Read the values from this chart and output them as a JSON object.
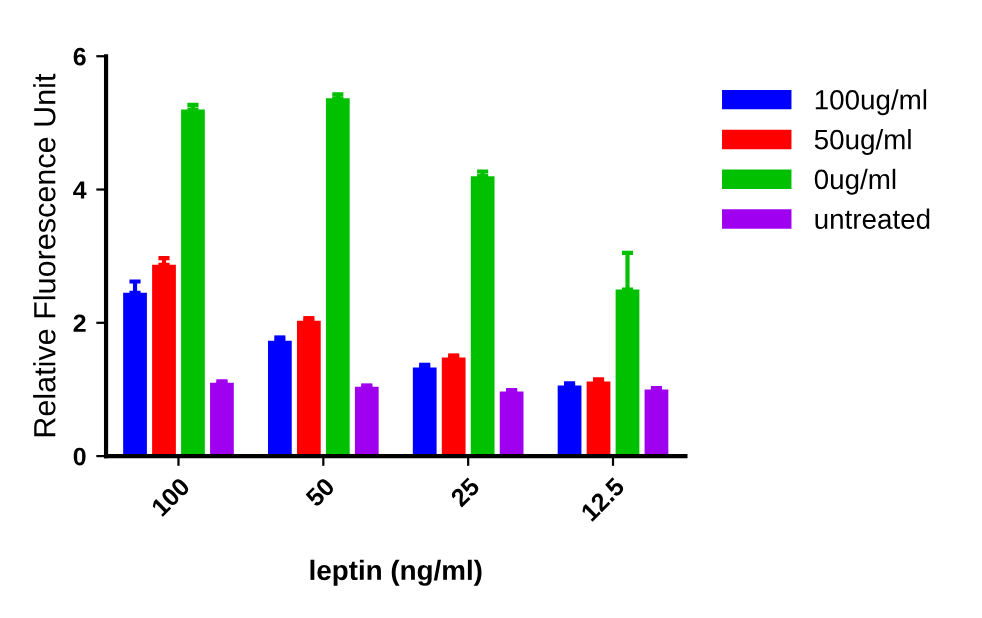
{
  "chart_data": {
    "type": "bar",
    "xlabel": "leptin (ng/ml)",
    "ylabel": "Relative Fluorescence Unit",
    "categories": [
      "100",
      "50",
      "25",
      "12.5"
    ],
    "series": [
      {
        "name": "100ug/ml",
        "color": "#0000ff",
        "values": [
          2.45,
          1.73,
          1.33,
          1.06
        ],
        "errors": [
          0.17,
          0.05,
          0.04,
          0.03
        ]
      },
      {
        "name": "50ug/ml",
        "color": "#ff0000",
        "values": [
          2.87,
          2.03,
          1.48,
          1.12
        ],
        "errors": [
          0.1,
          0.04,
          0.03,
          0.03
        ]
      },
      {
        "name": "0ug/ml",
        "color": "#00c000",
        "values": [
          5.2,
          5.37,
          4.2,
          2.5
        ],
        "errors": [
          0.07,
          0.06,
          0.07,
          0.55
        ]
      },
      {
        "name": "untreated",
        "color": "#a000f0",
        "values": [
          1.1,
          1.04,
          0.97,
          1.0
        ],
        "errors": [
          0.02,
          0.02,
          0.02,
          0.02
        ]
      }
    ],
    "ylim": [
      0,
      6
    ],
    "yticks": [
      0,
      2,
      4,
      6
    ],
    "grid": false,
    "legend": "top right"
  }
}
